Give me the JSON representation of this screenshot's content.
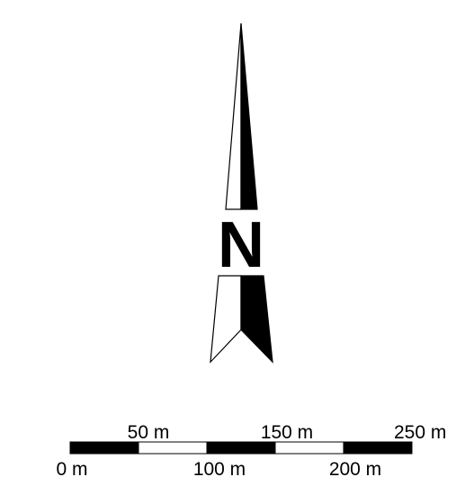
{
  "north_arrow": {
    "letter": "N",
    "fill_color": "#000000",
    "outline_color": "#000000",
    "background_color": "#ffffff"
  },
  "scale_bar": {
    "unit": "m",
    "top_labels": [
      "50 m",
      "150 m",
      "250 m"
    ],
    "bottom_labels": [
      "0 m",
      "100 m",
      "200 m"
    ],
    "segment_colors": [
      "#000000",
      "#ffffff",
      "#000000",
      "#ffffff",
      "#000000"
    ]
  }
}
